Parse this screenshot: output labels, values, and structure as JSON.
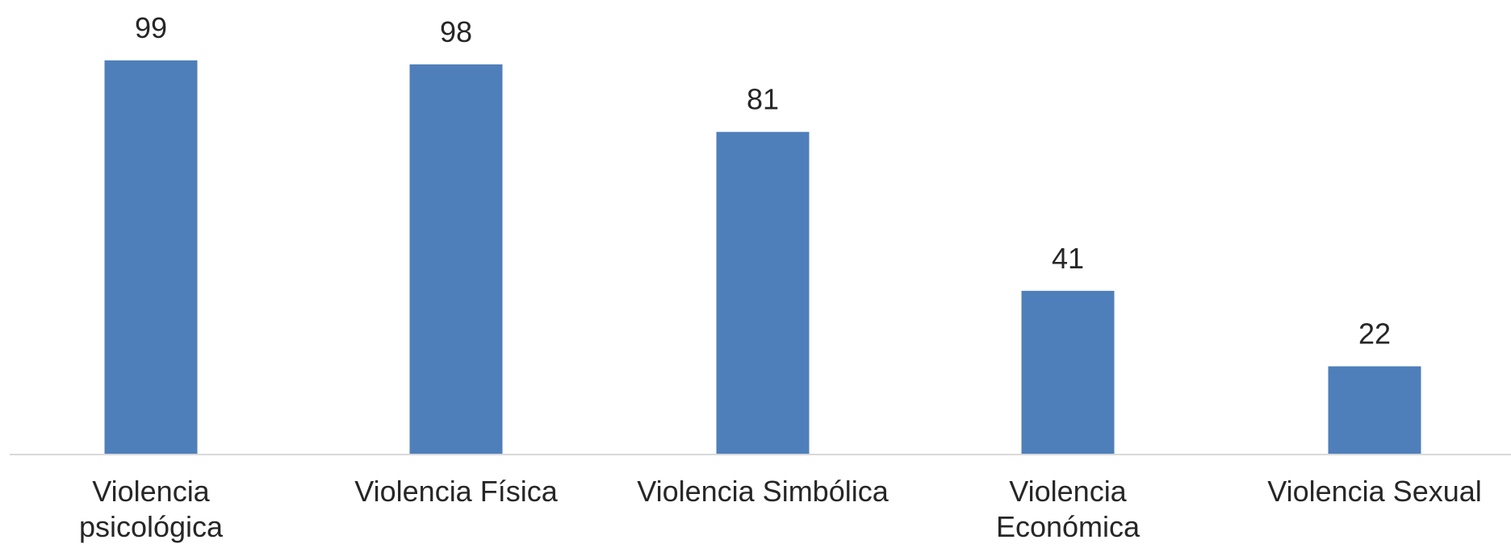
{
  "chart_data": {
    "type": "bar",
    "title": "",
    "xlabel": "",
    "ylabel": "",
    "categories": [
      [
        "Violencia",
        "psicológica"
      ],
      [
        "Violencia Física"
      ],
      [
        "Violencia Simbólica"
      ],
      [
        "Violencia",
        "Económica"
      ],
      [
        "Violencia Sexual"
      ]
    ],
    "values": [
      99,
      98,
      81,
      41,
      22
    ],
    "ylim": [
      0,
      100
    ],
    "bar_color": "#4f7fba",
    "axis_color": "#d9d9d9",
    "grid": false,
    "legend": "none",
    "data_labels": true
  }
}
